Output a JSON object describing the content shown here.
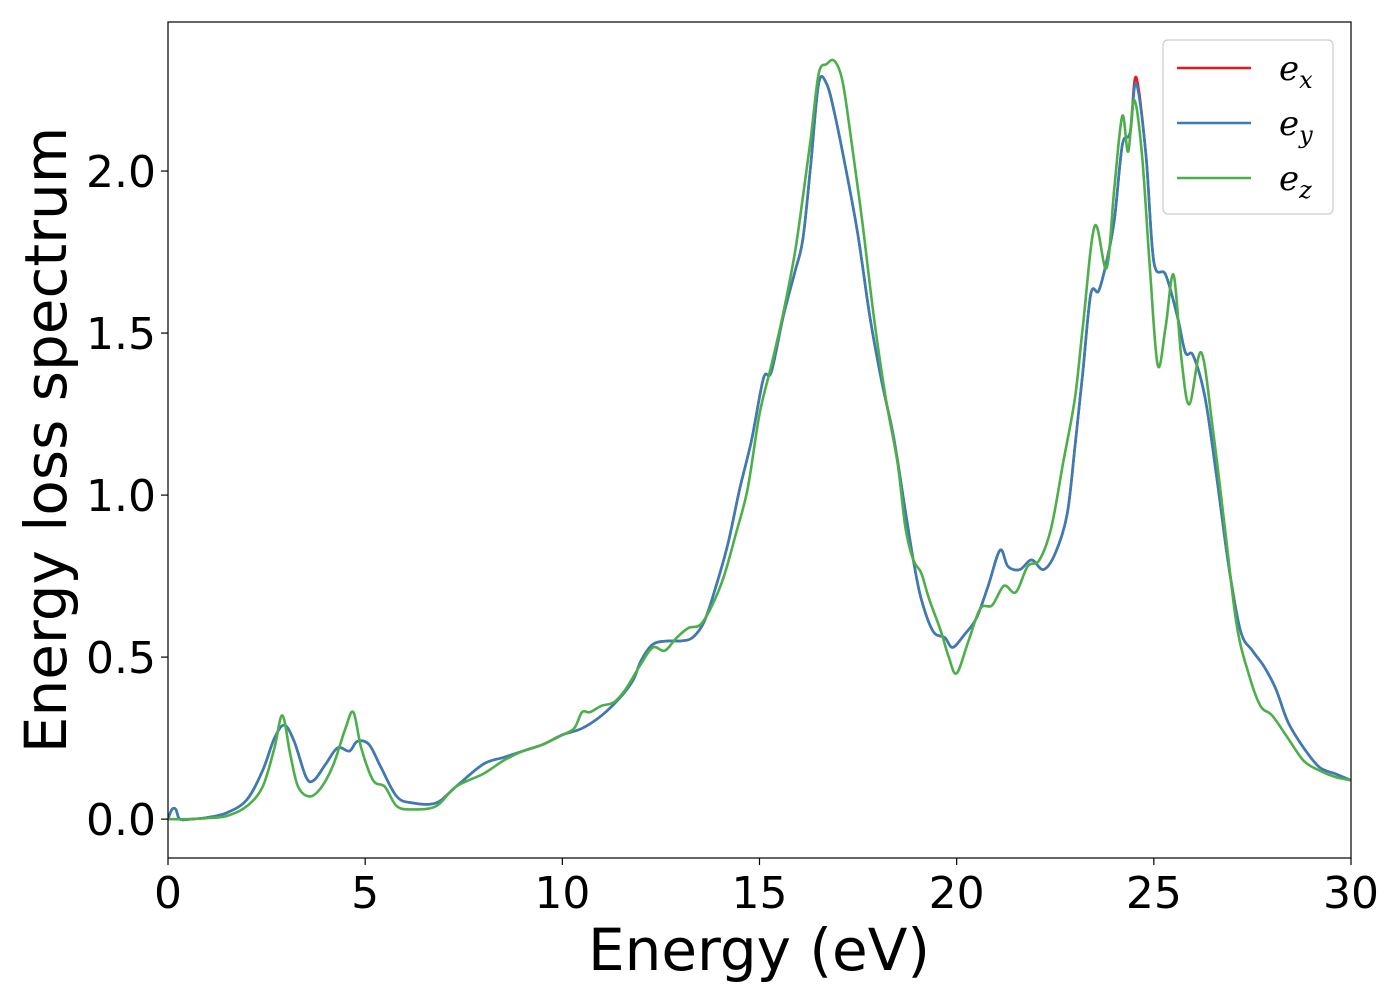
{
  "chart_data": {
    "type": "line",
    "xlabel": "Energy (eV)",
    "ylabel": "Energy loss spectrum",
    "xlim": [
      0,
      30
    ],
    "ylim": [
      -0.12,
      2.46
    ],
    "xticks": [
      "0",
      "5",
      "10",
      "15",
      "20",
      "25",
      "30"
    ],
    "yticks": [
      "0.0",
      "0.5",
      "1.0",
      "1.5",
      "2.0"
    ],
    "legend_position": "top-right",
    "grid": false,
    "series": [
      {
        "name": "e_x",
        "legend_base": "e",
        "legend_sub": "x",
        "color": "#e41a1c",
        "points": [
          [
            0,
            0.0
          ],
          [
            0.1,
            0.03
          ],
          [
            0.2,
            0.03
          ],
          [
            0.3,
            0.0
          ],
          [
            0.6,
            0.0
          ],
          [
            1.0,
            0.005
          ],
          [
            1.5,
            0.02
          ],
          [
            2.0,
            0.06
          ],
          [
            2.4,
            0.15
          ],
          [
            2.7,
            0.25
          ],
          [
            2.95,
            0.29
          ],
          [
            3.2,
            0.24
          ],
          [
            3.5,
            0.13
          ],
          [
            3.7,
            0.12
          ],
          [
            4.0,
            0.17
          ],
          [
            4.3,
            0.22
          ],
          [
            4.6,
            0.21
          ],
          [
            4.8,
            0.24
          ],
          [
            5.1,
            0.23
          ],
          [
            5.4,
            0.16
          ],
          [
            5.8,
            0.07
          ],
          [
            6.2,
            0.05
          ],
          [
            6.8,
            0.05
          ],
          [
            7.3,
            0.1
          ],
          [
            8.0,
            0.17
          ],
          [
            8.5,
            0.19
          ],
          [
            9.0,
            0.21
          ],
          [
            9.5,
            0.23
          ],
          [
            10.0,
            0.26
          ],
          [
            10.5,
            0.28
          ],
          [
            11.0,
            0.32
          ],
          [
            11.5,
            0.38
          ],
          [
            11.8,
            0.43
          ],
          [
            12.0,
            0.49
          ],
          [
            12.3,
            0.54
          ],
          [
            12.7,
            0.55
          ],
          [
            13.0,
            0.55
          ],
          [
            13.3,
            0.56
          ],
          [
            13.6,
            0.61
          ],
          [
            13.9,
            0.72
          ],
          [
            14.2,
            0.85
          ],
          [
            14.5,
            1.02
          ],
          [
            14.8,
            1.17
          ],
          [
            15.1,
            1.36
          ],
          [
            15.3,
            1.38
          ],
          [
            15.6,
            1.55
          ],
          [
            15.9,
            1.69
          ],
          [
            16.1,
            1.79
          ],
          [
            16.3,
            2.02
          ],
          [
            16.5,
            2.27
          ],
          [
            16.7,
            2.27
          ],
          [
            16.9,
            2.18
          ],
          [
            17.2,
            2.0
          ],
          [
            17.5,
            1.8
          ],
          [
            17.8,
            1.55
          ],
          [
            18.1,
            1.35
          ],
          [
            18.4,
            1.18
          ],
          [
            18.7,
            0.95
          ],
          [
            18.9,
            0.8
          ],
          [
            19.1,
            0.68
          ],
          [
            19.4,
            0.58
          ],
          [
            19.7,
            0.56
          ],
          [
            19.9,
            0.53
          ],
          [
            20.2,
            0.57
          ],
          [
            20.5,
            0.62
          ],
          [
            20.8,
            0.72
          ],
          [
            21.1,
            0.83
          ],
          [
            21.3,
            0.78
          ],
          [
            21.6,
            0.77
          ],
          [
            21.9,
            0.8
          ],
          [
            22.2,
            0.77
          ],
          [
            22.5,
            0.82
          ],
          [
            22.8,
            0.94
          ],
          [
            23.0,
            1.15
          ],
          [
            23.2,
            1.38
          ],
          [
            23.4,
            1.62
          ],
          [
            23.6,
            1.63
          ],
          [
            23.8,
            1.72
          ],
          [
            24.0,
            1.85
          ],
          [
            24.2,
            2.08
          ],
          [
            24.4,
            2.12
          ],
          [
            24.55,
            2.29
          ],
          [
            24.8,
            2.05
          ],
          [
            25.0,
            1.72
          ],
          [
            25.3,
            1.68
          ],
          [
            25.6,
            1.55
          ],
          [
            25.8,
            1.44
          ],
          [
            26.0,
            1.43
          ],
          [
            26.3,
            1.3
          ],
          [
            26.6,
            1.05
          ],
          [
            26.9,
            0.78
          ],
          [
            27.2,
            0.58
          ],
          [
            27.5,
            0.52
          ],
          [
            27.8,
            0.47
          ],
          [
            28.1,
            0.4
          ],
          [
            28.4,
            0.3
          ],
          [
            28.8,
            0.22
          ],
          [
            29.2,
            0.16
          ],
          [
            29.6,
            0.14
          ],
          [
            30.0,
            0.12
          ]
        ]
      },
      {
        "name": "e_y",
        "legend_base": "e",
        "legend_sub": "y",
        "color": "#377eb8",
        "points": [
          [
            0,
            0.0
          ],
          [
            0.1,
            0.03
          ],
          [
            0.2,
            0.03
          ],
          [
            0.3,
            0.0
          ],
          [
            0.6,
            0.0
          ],
          [
            1.0,
            0.005
          ],
          [
            1.5,
            0.02
          ],
          [
            2.0,
            0.06
          ],
          [
            2.4,
            0.15
          ],
          [
            2.7,
            0.25
          ],
          [
            2.95,
            0.29
          ],
          [
            3.2,
            0.24
          ],
          [
            3.5,
            0.13
          ],
          [
            3.7,
            0.12
          ],
          [
            4.0,
            0.17
          ],
          [
            4.3,
            0.22
          ],
          [
            4.6,
            0.21
          ],
          [
            4.8,
            0.24
          ],
          [
            5.1,
            0.23
          ],
          [
            5.4,
            0.16
          ],
          [
            5.8,
            0.07
          ],
          [
            6.2,
            0.05
          ],
          [
            6.8,
            0.05
          ],
          [
            7.3,
            0.1
          ],
          [
            8.0,
            0.17
          ],
          [
            8.5,
            0.19
          ],
          [
            9.0,
            0.21
          ],
          [
            9.5,
            0.23
          ],
          [
            10.0,
            0.26
          ],
          [
            10.5,
            0.28
          ],
          [
            11.0,
            0.32
          ],
          [
            11.5,
            0.38
          ],
          [
            11.8,
            0.43
          ],
          [
            12.0,
            0.49
          ],
          [
            12.3,
            0.54
          ],
          [
            12.7,
            0.55
          ],
          [
            13.0,
            0.55
          ],
          [
            13.3,
            0.56
          ],
          [
            13.6,
            0.61
          ],
          [
            13.9,
            0.72
          ],
          [
            14.2,
            0.85
          ],
          [
            14.5,
            1.02
          ],
          [
            14.8,
            1.17
          ],
          [
            15.1,
            1.36
          ],
          [
            15.3,
            1.38
          ],
          [
            15.6,
            1.55
          ],
          [
            15.9,
            1.69
          ],
          [
            16.1,
            1.79
          ],
          [
            16.3,
            2.02
          ],
          [
            16.5,
            2.27
          ],
          [
            16.7,
            2.27
          ],
          [
            16.9,
            2.18
          ],
          [
            17.2,
            2.0
          ],
          [
            17.5,
            1.8
          ],
          [
            17.8,
            1.55
          ],
          [
            18.1,
            1.35
          ],
          [
            18.4,
            1.18
          ],
          [
            18.7,
            0.95
          ],
          [
            18.9,
            0.8
          ],
          [
            19.1,
            0.68
          ],
          [
            19.4,
            0.58
          ],
          [
            19.7,
            0.56
          ],
          [
            19.9,
            0.53
          ],
          [
            20.2,
            0.57
          ],
          [
            20.5,
            0.62
          ],
          [
            20.8,
            0.72
          ],
          [
            21.1,
            0.83
          ],
          [
            21.3,
            0.78
          ],
          [
            21.6,
            0.77
          ],
          [
            21.9,
            0.8
          ],
          [
            22.2,
            0.77
          ],
          [
            22.5,
            0.82
          ],
          [
            22.8,
            0.94
          ],
          [
            23.0,
            1.15
          ],
          [
            23.2,
            1.38
          ],
          [
            23.4,
            1.62
          ],
          [
            23.6,
            1.63
          ],
          [
            23.8,
            1.72
          ],
          [
            24.0,
            1.85
          ],
          [
            24.2,
            2.08
          ],
          [
            24.4,
            2.12
          ],
          [
            24.55,
            2.27
          ],
          [
            24.8,
            2.05
          ],
          [
            25.0,
            1.72
          ],
          [
            25.3,
            1.68
          ],
          [
            25.6,
            1.55
          ],
          [
            25.8,
            1.44
          ],
          [
            26.0,
            1.43
          ],
          [
            26.3,
            1.3
          ],
          [
            26.6,
            1.05
          ],
          [
            26.9,
            0.78
          ],
          [
            27.2,
            0.58
          ],
          [
            27.5,
            0.52
          ],
          [
            27.8,
            0.47
          ],
          [
            28.1,
            0.4
          ],
          [
            28.4,
            0.3
          ],
          [
            28.8,
            0.22
          ],
          [
            29.2,
            0.16
          ],
          [
            29.6,
            0.14
          ],
          [
            30.0,
            0.12
          ]
        ]
      },
      {
        "name": "e_z",
        "legend_base": "e",
        "legend_sub": "z",
        "color": "#4daf4a",
        "points": [
          [
            0,
            0.0
          ],
          [
            0.5,
            0.0
          ],
          [
            1.0,
            0.003
          ],
          [
            1.5,
            0.01
          ],
          [
            2.0,
            0.04
          ],
          [
            2.4,
            0.1
          ],
          [
            2.7,
            0.22
          ],
          [
            2.9,
            0.32
          ],
          [
            3.1,
            0.2
          ],
          [
            3.3,
            0.1
          ],
          [
            3.6,
            0.07
          ],
          [
            3.9,
            0.1
          ],
          [
            4.2,
            0.17
          ],
          [
            4.5,
            0.28
          ],
          [
            4.7,
            0.33
          ],
          [
            4.9,
            0.22
          ],
          [
            5.2,
            0.12
          ],
          [
            5.5,
            0.1
          ],
          [
            5.8,
            0.04
          ],
          [
            6.2,
            0.03
          ],
          [
            6.8,
            0.04
          ],
          [
            7.3,
            0.1
          ],
          [
            8.0,
            0.14
          ],
          [
            8.5,
            0.18
          ],
          [
            9.0,
            0.21
          ],
          [
            9.5,
            0.23
          ],
          [
            10.0,
            0.26
          ],
          [
            10.3,
            0.28
          ],
          [
            10.5,
            0.33
          ],
          [
            10.7,
            0.33
          ],
          [
            11.0,
            0.35
          ],
          [
            11.3,
            0.36
          ],
          [
            11.6,
            0.4
          ],
          [
            12.0,
            0.48
          ],
          [
            12.3,
            0.53
          ],
          [
            12.6,
            0.52
          ],
          [
            12.9,
            0.56
          ],
          [
            13.2,
            0.59
          ],
          [
            13.5,
            0.6
          ],
          [
            13.8,
            0.66
          ],
          [
            14.1,
            0.75
          ],
          [
            14.4,
            0.88
          ],
          [
            14.7,
            1.02
          ],
          [
            15.0,
            1.25
          ],
          [
            15.3,
            1.4
          ],
          [
            15.6,
            1.56
          ],
          [
            15.9,
            1.75
          ],
          [
            16.1,
            1.92
          ],
          [
            16.3,
            2.1
          ],
          [
            16.5,
            2.3
          ],
          [
            16.7,
            2.33
          ],
          [
            16.9,
            2.34
          ],
          [
            17.1,
            2.28
          ],
          [
            17.3,
            2.12
          ],
          [
            17.6,
            1.85
          ],
          [
            17.9,
            1.55
          ],
          [
            18.2,
            1.3
          ],
          [
            18.5,
            1.1
          ],
          [
            18.7,
            0.9
          ],
          [
            18.9,
            0.8
          ],
          [
            19.1,
            0.76
          ],
          [
            19.3,
            0.68
          ],
          [
            19.6,
            0.58
          ],
          [
            19.8,
            0.5
          ],
          [
            20.0,
            0.45
          ],
          [
            20.3,
            0.55
          ],
          [
            20.6,
            0.65
          ],
          [
            20.9,
            0.66
          ],
          [
            21.2,
            0.72
          ],
          [
            21.5,
            0.7
          ],
          [
            21.8,
            0.78
          ],
          [
            22.1,
            0.8
          ],
          [
            22.4,
            0.9
          ],
          [
            22.7,
            1.1
          ],
          [
            23.0,
            1.3
          ],
          [
            23.2,
            1.52
          ],
          [
            23.5,
            1.83
          ],
          [
            23.8,
            1.7
          ],
          [
            24.0,
            1.95
          ],
          [
            24.2,
            2.17
          ],
          [
            24.35,
            2.06
          ],
          [
            24.5,
            2.22
          ],
          [
            24.7,
            2.05
          ],
          [
            24.9,
            1.7
          ],
          [
            25.1,
            1.4
          ],
          [
            25.3,
            1.52
          ],
          [
            25.5,
            1.68
          ],
          [
            25.7,
            1.42
          ],
          [
            25.9,
            1.28
          ],
          [
            26.2,
            1.44
          ],
          [
            26.5,
            1.2
          ],
          [
            26.8,
            0.9
          ],
          [
            27.1,
            0.6
          ],
          [
            27.4,
            0.45
          ],
          [
            27.7,
            0.35
          ],
          [
            28.0,
            0.32
          ],
          [
            28.4,
            0.25
          ],
          [
            28.8,
            0.18
          ],
          [
            29.2,
            0.15
          ],
          [
            29.6,
            0.13
          ],
          [
            30.0,
            0.12
          ]
        ]
      }
    ]
  }
}
